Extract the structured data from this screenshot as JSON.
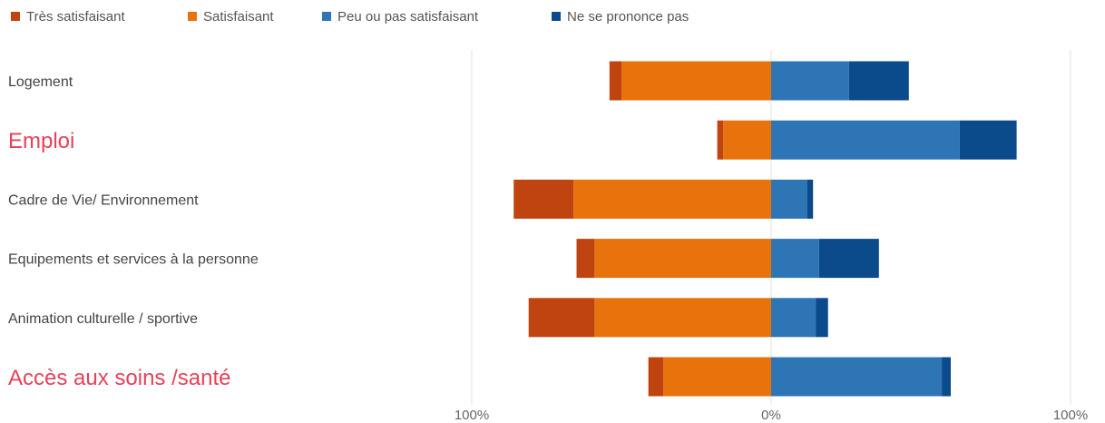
{
  "chart_data": {
    "type": "bar",
    "orientation": "horizontal",
    "layout": "diverging stacked",
    "categories": [
      "Logement",
      "Emploi",
      "Cadre de Vie/ Environnement",
      "Equipements et services à la personne",
      "Animation culturelle / sportive",
      "Accès aux soins /santé"
    ],
    "highlighted_categories": [
      "Emploi",
      "Accès aux soins /santé"
    ],
    "series": [
      {
        "name": "Très satisfaisant",
        "side": "negative",
        "color": "#c0440f",
        "values": [
          4,
          2,
          20,
          6,
          22,
          5
        ]
      },
      {
        "name": "Satisfaisant",
        "side": "negative",
        "color": "#e8720c",
        "values": [
          50,
          16,
          66,
          59,
          59,
          36
        ]
      },
      {
        "name": "Peu ou pas satisfaisant",
        "side": "positive",
        "color": "#2e75b6",
        "values": [
          26,
          63,
          12,
          16,
          15,
          57
        ]
      },
      {
        "name": "Ne se prononce pas",
        "side": "positive",
        "color": "#0b4a8b",
        "values": [
          20,
          19,
          2,
          20,
          4,
          3
        ]
      }
    ],
    "xticks": [
      "100%",
      "0%",
      "100%"
    ],
    "xlim": [
      -100,
      100
    ],
    "grid": true,
    "legend_position": "top-left",
    "highlight_color": "#e8415a"
  }
}
